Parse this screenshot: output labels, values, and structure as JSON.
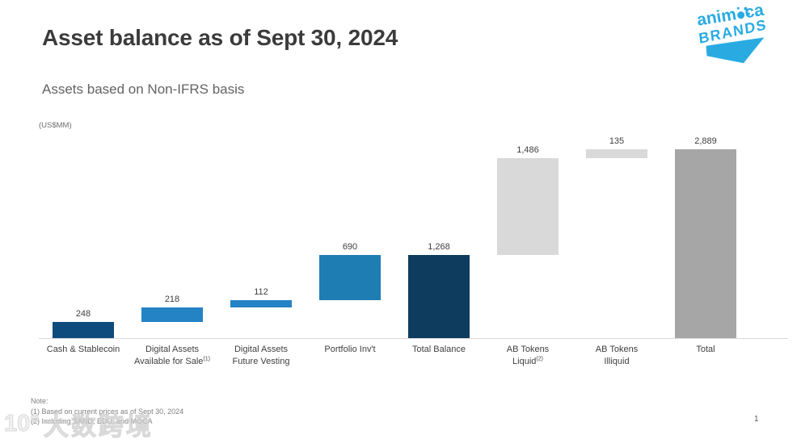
{
  "slide": {
    "title": "Asset balance as of Sept 30, 2024",
    "subtitle": "Assets based on Non-IFRS basis",
    "units_label": "(US$MM)",
    "page_number": "1"
  },
  "logo": {
    "line1_pre": "anim",
    "line1_post": "ca",
    "line2": "BRANDS",
    "brand_color": "#29abe2"
  },
  "notes": {
    "heading": "Note:",
    "items": [
      "(1) Based on current prices as of Sept 30, 2024",
      "(2) Including SAND, EDU, and MOCA"
    ]
  },
  "watermark": {
    "icon_text": "10°",
    "text": "大数跨境"
  },
  "chart_data": {
    "type": "bar",
    "subtype": "waterfall",
    "title": "Asset balance as of Sept 30, 2024",
    "units": "US$MM",
    "ylim": [
      0,
      2889
    ],
    "grid": false,
    "legend": false,
    "categories": [
      "Cash & Stablecoin",
      "Digital Assets Available for Sale(1)",
      "Digital Assets Future Vesting",
      "Portfolio Inv't",
      "Total Balance",
      "AB Tokens Liquid(2)",
      "AB Tokens Illiquid",
      "Total"
    ],
    "bars": [
      {
        "label_lines": [
          "Cash & Stablecoin"
        ],
        "sup": "",
        "value": 248,
        "display": "248",
        "start": 0,
        "end": 248,
        "color": "#0f4c7e"
      },
      {
        "label_lines": [
          "Digital Assets",
          "Available for Sale"
        ],
        "sup": "(1)",
        "value": 218,
        "display": "218",
        "start": 248,
        "end": 466,
        "color": "#2383c5"
      },
      {
        "label_lines": [
          "Digital Assets",
          "Future Vesting"
        ],
        "sup": "",
        "value": 112,
        "display": "112",
        "start": 466,
        "end": 578,
        "color": "#2383c5"
      },
      {
        "label_lines": [
          "Portfolio Inv't"
        ],
        "sup": "",
        "value": 690,
        "display": "690",
        "start": 578,
        "end": 1268,
        "color": "#1e7db3"
      },
      {
        "label_lines": [
          "Total Balance"
        ],
        "sup": "",
        "value": 1268,
        "display": "1,268",
        "start": 0,
        "end": 1268,
        "color": "#0d3c5f"
      },
      {
        "label_lines": [
          "AB Tokens",
          "Liquid"
        ],
        "sup": "(2)",
        "value": 1486,
        "display": "1,486",
        "start": 1268,
        "end": 2754,
        "color": "#d9d9d9"
      },
      {
        "label_lines": [
          "AB Tokens",
          "Illiquid"
        ],
        "sup": "",
        "value": 135,
        "display": "135",
        "start": 2754,
        "end": 2889,
        "color": "#d9d9d9"
      },
      {
        "label_lines": [
          "Total"
        ],
        "sup": "",
        "value": 2889,
        "display": "2,889",
        "start": 0,
        "end": 2889,
        "color": "#a6a6a6"
      }
    ]
  }
}
